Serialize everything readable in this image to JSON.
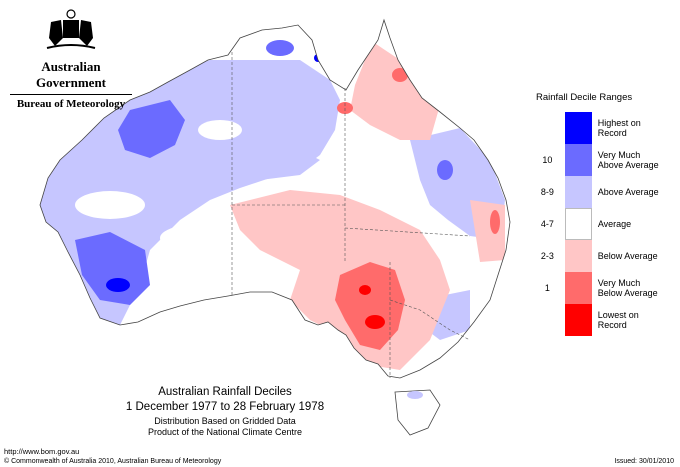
{
  "logo": {
    "org": "Australian Government",
    "bureau": "Bureau of Meteorology",
    "emblem_icon": "commonwealth-coat-of-arms"
  },
  "legend": {
    "title": "Rainfall Decile Ranges",
    "items": [
      {
        "code": "",
        "label_line1": "Highest on",
        "label_line2": "Record",
        "color": "#0000ff"
      },
      {
        "code": "10",
        "label_line1": "Very Much",
        "label_line2": "Above Average",
        "color": "#6b6bff"
      },
      {
        "code": "8-9",
        "label_line1": "Above Average",
        "label_line2": "",
        "color": "#c6c6ff"
      },
      {
        "code": "4-7",
        "label_line1": "Average",
        "label_line2": "",
        "color": "#ffffff"
      },
      {
        "code": "2-3",
        "label_line1": "Below Average",
        "label_line2": "",
        "color": "#ffc6c6"
      },
      {
        "code": "1",
        "label_line1": "Very Much",
        "label_line2": "Below Average",
        "color": "#ff6b6b"
      },
      {
        "code": "",
        "label_line1": "Lowest on",
        "label_line2": "Record",
        "color": "#ff0000"
      }
    ]
  },
  "caption": {
    "title": "Australian Rainfall Deciles",
    "dates": "1 December 1977 to 28 February 1978",
    "line1": "Distribution Based on Gridded Data",
    "line2": "Product of the National Climate Centre"
  },
  "footer": {
    "url": "http://www.bom.gov.au",
    "copyright": "© Commonwealth of Australia 2010, Australian Bureau of Meteorology",
    "issued": "Issued: 30/01/2010"
  }
}
